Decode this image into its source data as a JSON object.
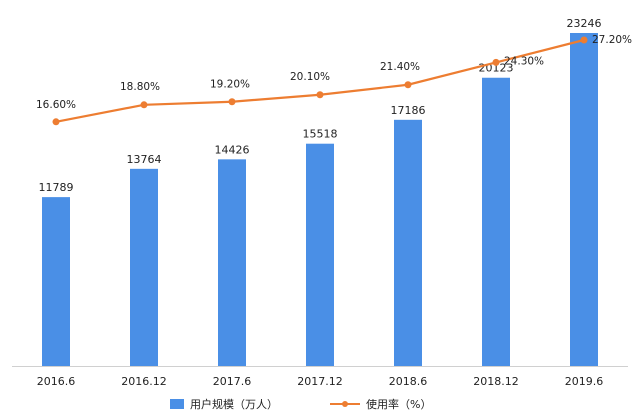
{
  "chart_data": {
    "type": "bar",
    "categories": [
      "2016.6",
      "2016.12",
      "2017.6",
      "2017.12",
      "2018.6",
      "2018.12",
      "2019.6"
    ],
    "series": [
      {
        "name": "用户规模（万人）",
        "type": "bar",
        "axis": "left",
        "color": "#4a8fe6",
        "values": [
          11789,
          13764,
          14426,
          15518,
          17186,
          20123,
          23246
        ],
        "labels": [
          "11789",
          "13764",
          "14426",
          "15518",
          "17186",
          "20123",
          "23246"
        ]
      },
      {
        "name": "使用率（%）",
        "type": "line",
        "axis": "right",
        "color": "#ed7d31",
        "values": [
          16.6,
          18.8,
          19.2,
          20.1,
          21.4,
          24.3,
          27.2
        ],
        "labels": [
          "16.60%",
          "18.80%",
          "19.20%",
          "20.10%",
          "21.40%",
          "24.30%",
          "27.20%"
        ]
      }
    ],
    "ylim_left": [
      0,
      23246
    ],
    "ylim_right": [
      11,
      27.2
    ],
    "grid": false,
    "legend_position": "bottom"
  }
}
